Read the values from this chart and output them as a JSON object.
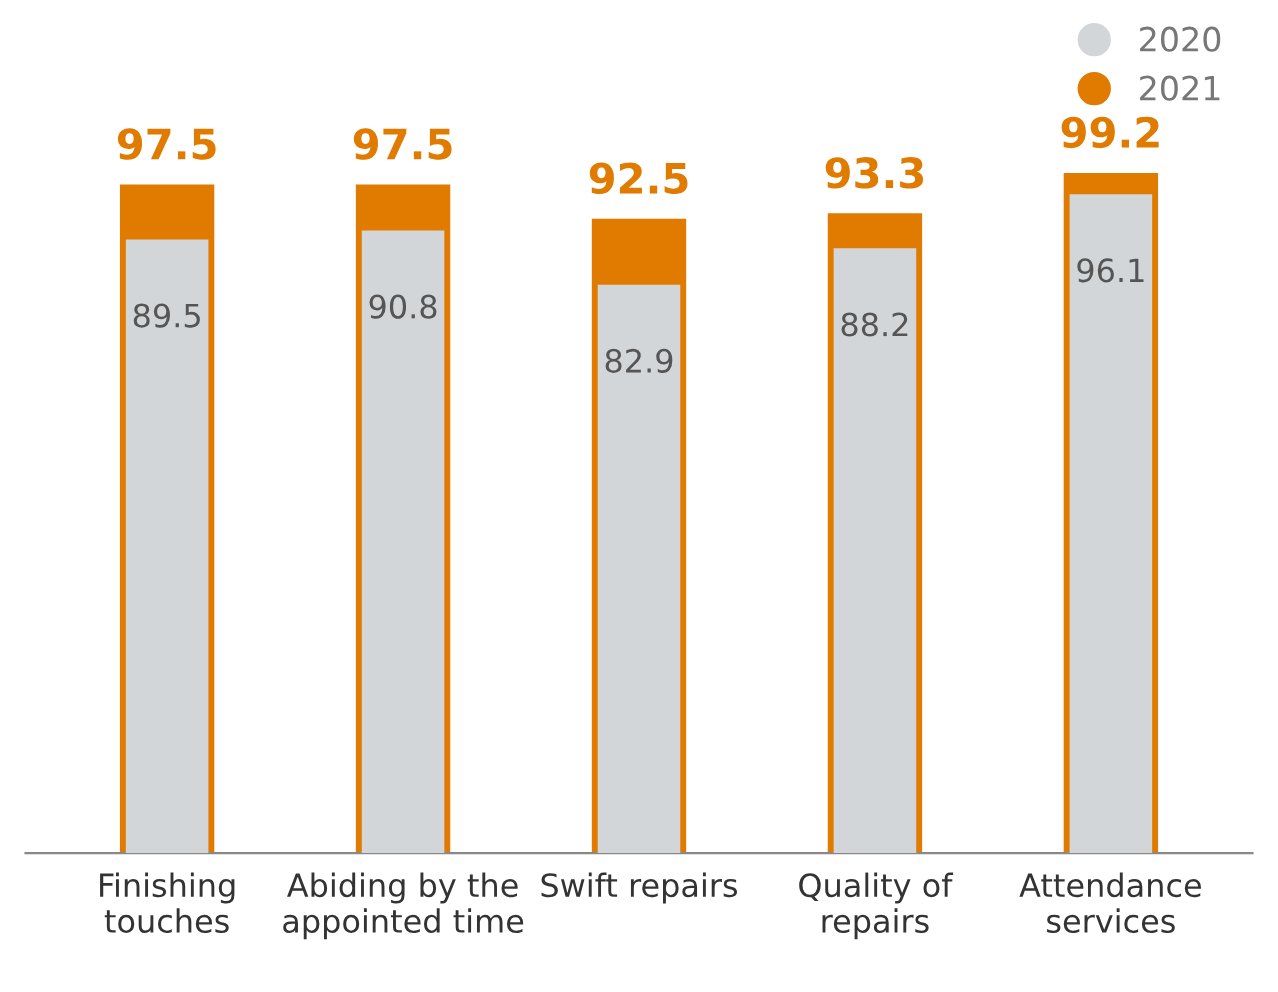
{
  "chart_data": {
    "type": "bar",
    "categories": [
      "Finishing touches",
      "Abiding by the appointed time",
      "Swift repairs",
      "Quality of repairs",
      "Attendance services"
    ],
    "series": [
      {
        "name": "2021",
        "color": "#e07b00",
        "values": [
          97.5,
          97.5,
          92.5,
          93.3,
          99.2
        ]
      },
      {
        "name": "2020",
        "color": "#d3d6d9",
        "values": [
          89.5,
          90.8,
          82.9,
          88.2,
          96.1
        ]
      }
    ],
    "data_labels": true,
    "grid": false,
    "legend": "top right",
    "tick_labels": "x"
  }
}
